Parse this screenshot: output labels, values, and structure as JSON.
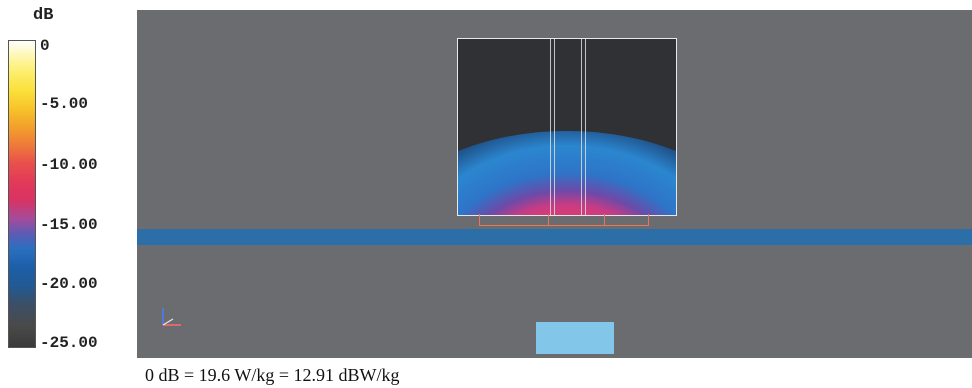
{
  "legend": {
    "unit": "dB",
    "ticks": [
      "0",
      "-5.00",
      "-10.00",
      "-15.00",
      "-20.00",
      "-25.00"
    ]
  },
  "footer": "0 dB = 19.6 W/kg = 12.91 dBW/kg"
}
